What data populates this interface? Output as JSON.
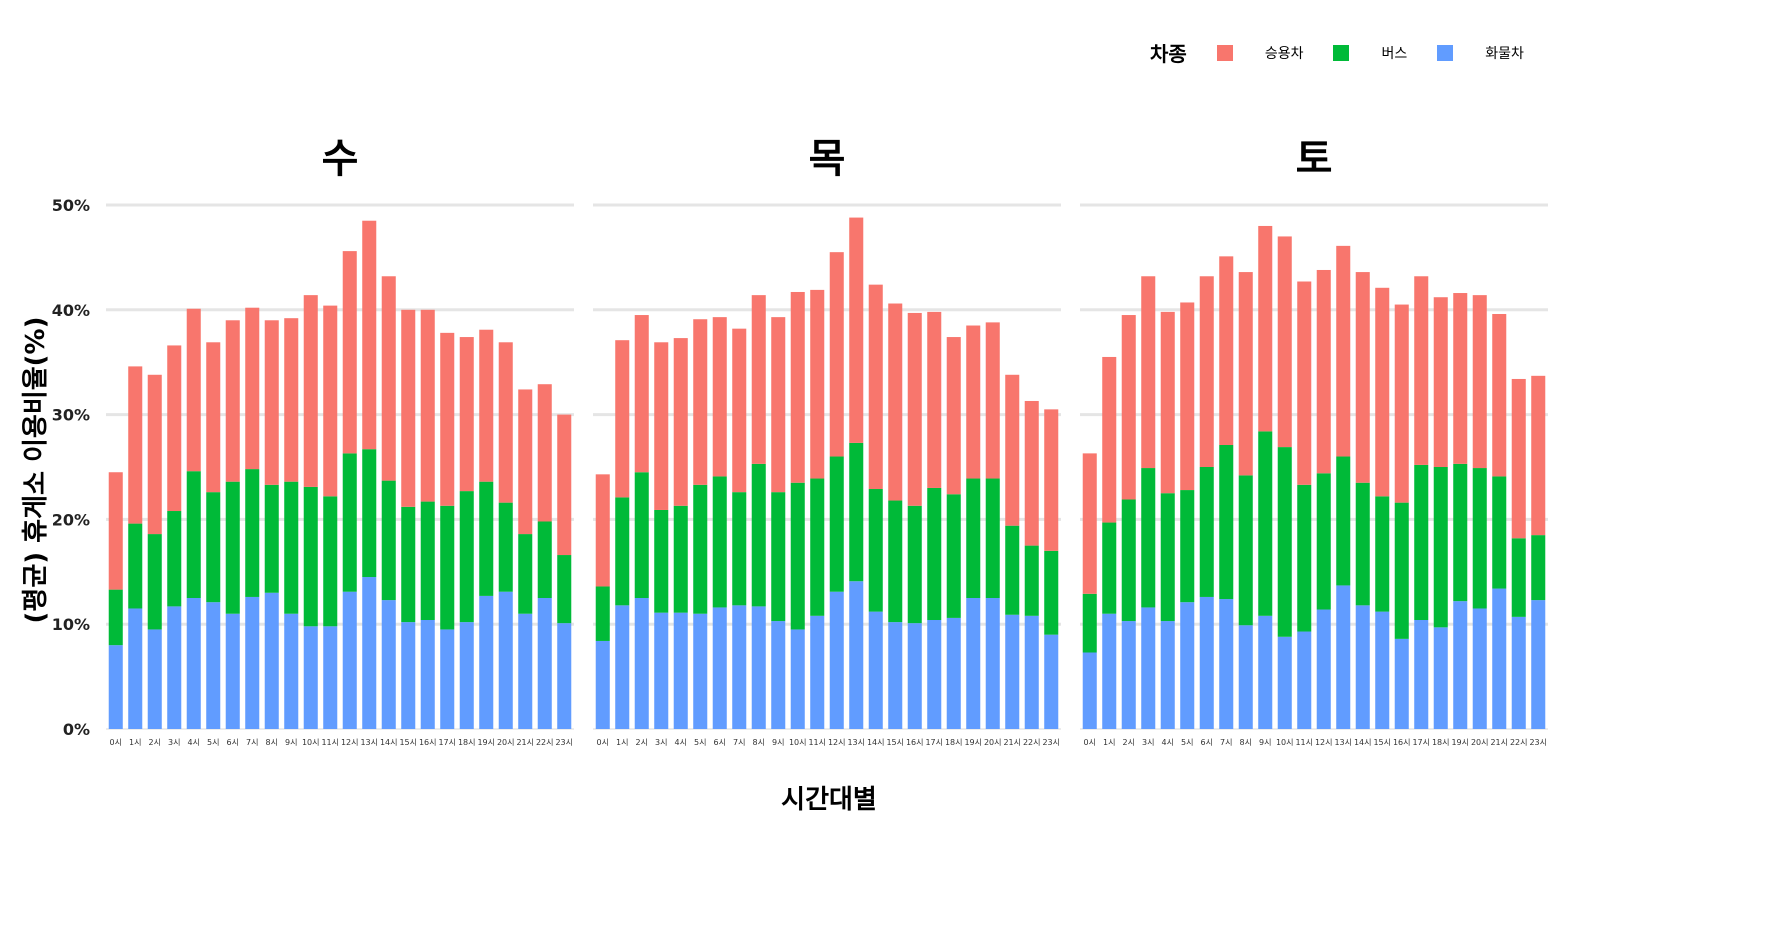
{
  "legend": {
    "title": "차종",
    "items": [
      {
        "label": "승용차",
        "color": "#F8766D"
      },
      {
        "label": "버스",
        "color": "#00BA38"
      },
      {
        "label": "화물차",
        "color": "#619CFF"
      }
    ]
  },
  "chart_data": {
    "type": "bar",
    "stacked": true,
    "xlabel": "시간대별",
    "ylabel": "(평균) 휴게소 이용비율(%)",
    "ylim": [
      0,
      50
    ],
    "yticks": [
      "0%",
      "10%",
      "20%",
      "30%",
      "40%",
      "50%"
    ],
    "grid": true,
    "legend_position": "top-right",
    "categories": [
      "0시",
      "1시",
      "2시",
      "3시",
      "4시",
      "5시",
      "6시",
      "7시",
      "8시",
      "9시",
      "10시",
      "11시",
      "12시",
      "13시",
      "14시",
      "15시",
      "16시",
      "17시",
      "18시",
      "19시",
      "20시",
      "21시",
      "22시",
      "23시"
    ],
    "panels": [
      {
        "title": "수",
        "series": [
          {
            "name": "화물차",
            "values": [
              8.0,
              11.5,
              9.5,
              11.7,
              12.5,
              12.1,
              11.0,
              12.6,
              13.0,
              11.0,
              9.8,
              9.8,
              13.1,
              14.5,
              12.3,
              10.2,
              10.4,
              9.5,
              10.2,
              12.7,
              13.1,
              11.0,
              12.5,
              10.1
            ]
          },
          {
            "name": "버스",
            "values": [
              5.3,
              8.1,
              9.1,
              9.1,
              12.1,
              10.5,
              12.6,
              12.2,
              10.3,
              12.6,
              13.3,
              12.4,
              13.2,
              12.2,
              11.4,
              11.0,
              11.3,
              11.8,
              12.5,
              10.9,
              8.5,
              7.6,
              7.3,
              6.5
            ]
          },
          {
            "name": "승용차",
            "values": [
              11.2,
              15.0,
              15.2,
              15.8,
              15.5,
              14.3,
              15.4,
              15.4,
              15.7,
              15.6,
              18.3,
              18.2,
              19.3,
              21.8,
              19.5,
              18.8,
              18.3,
              16.5,
              14.7,
              14.5,
              15.3,
              13.8,
              13.1,
              13.4
            ]
          }
        ]
      },
      {
        "title": "목",
        "series": [
          {
            "name": "화물차",
            "values": [
              8.4,
              11.8,
              12.5,
              11.1,
              11.1,
              11.0,
              11.6,
              11.8,
              11.7,
              10.3,
              9.5,
              10.8,
              13.1,
              14.1,
              11.2,
              10.2,
              10.1,
              10.4,
              10.6,
              12.5,
              12.5,
              10.9,
              10.8,
              9.0
            ]
          },
          {
            "name": "버스",
            "values": [
              5.2,
              10.3,
              12.0,
              9.8,
              10.2,
              12.3,
              12.5,
              10.8,
              13.6,
              12.3,
              14.0,
              13.1,
              12.9,
              13.2,
              11.7,
              11.6,
              11.2,
              12.6,
              11.8,
              11.4,
              11.4,
              8.5,
              6.7,
              8.0
            ]
          },
          {
            "name": "승용차",
            "values": [
              10.7,
              15.0,
              15.0,
              16.0,
              16.0,
              15.8,
              15.2,
              15.6,
              16.1,
              16.7,
              18.2,
              18.0,
              19.5,
              21.5,
              19.5,
              18.8,
              18.4,
              16.8,
              15.0,
              14.6,
              14.9,
              14.4,
              13.8,
              13.5
            ]
          }
        ]
      },
      {
        "title": "토",
        "series": [
          {
            "name": "화물차",
            "values": [
              7.3,
              11.0,
              10.3,
              11.6,
              10.3,
              12.1,
              12.6,
              12.4,
              9.9,
              10.8,
              8.8,
              9.3,
              11.4,
              13.7,
              11.8,
              11.2,
              8.6,
              10.4,
              9.7,
              12.2,
              11.5,
              13.4,
              10.7,
              12.3
            ]
          },
          {
            "name": "버스",
            "values": [
              5.6,
              8.7,
              11.6,
              13.3,
              12.2,
              10.7,
              12.4,
              14.7,
              14.3,
              17.6,
              18.1,
              14.0,
              13.0,
              12.3,
              11.7,
              11.0,
              13.0,
              14.8,
              15.3,
              13.1,
              13.4,
              10.7,
              7.5,
              6.2
            ]
          },
          {
            "name": "승용차",
            "values": [
              13.4,
              15.8,
              17.6,
              18.3,
              17.3,
              17.9,
              18.2,
              18.0,
              19.4,
              19.6,
              20.1,
              19.4,
              19.4,
              20.1,
              20.1,
              19.9,
              18.9,
              18.0,
              16.2,
              16.3,
              16.5,
              15.5,
              15.2,
              15.2
            ]
          }
        ]
      }
    ]
  }
}
